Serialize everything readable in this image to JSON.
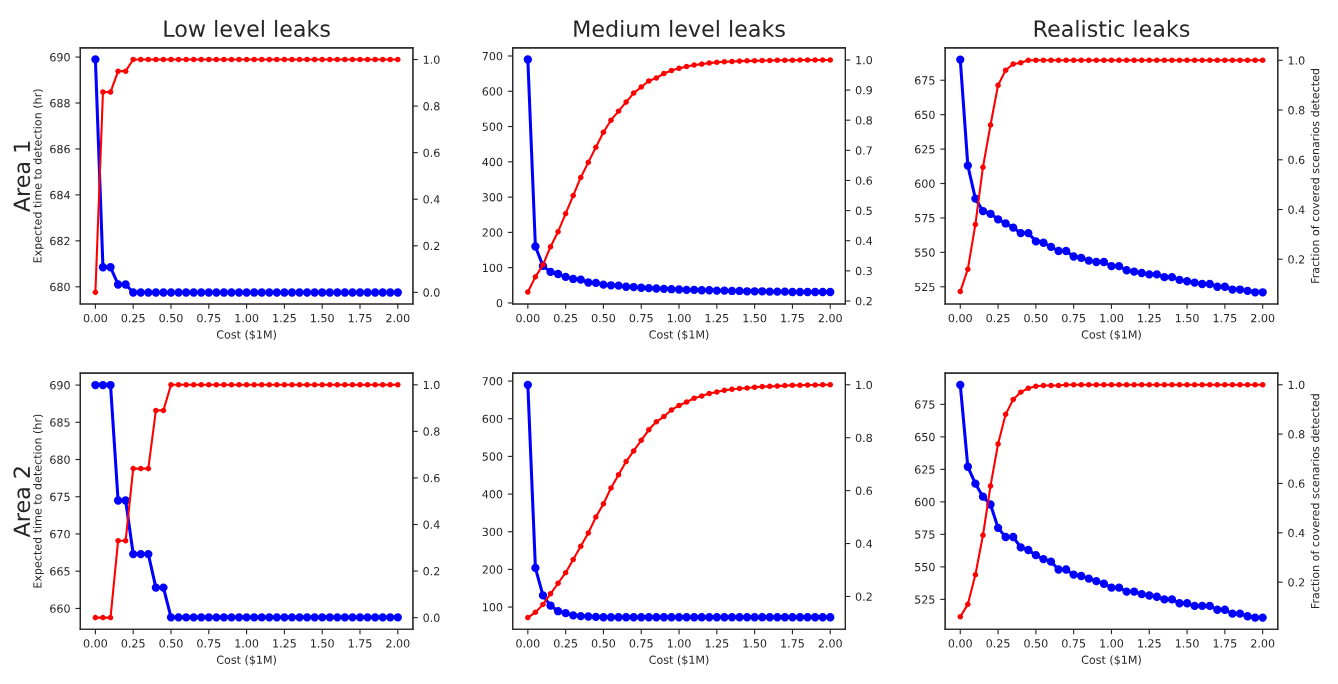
{
  "chart_data": [
    {
      "type": "line",
      "title": "Low level leaks",
      "xlabel": "Cost ($1M)",
      "ylabel": "Expected time to detection (hr)",
      "annotations": [
        "Area 1"
      ],
      "marker": "circle",
      "line_style": "solid",
      "grid": false,
      "legend": false,
      "x": [
        0,
        0.05,
        0.1,
        0.15,
        0.2,
        0.25,
        0.3,
        0.35,
        0.4,
        0.45,
        0.5,
        0.55,
        0.6,
        0.65,
        0.7,
        0.75,
        0.8,
        0.85,
        0.9,
        0.95,
        1.0,
        1.05,
        1.1,
        1.15,
        1.2,
        1.25,
        1.3,
        1.35,
        1.4,
        1.45,
        1.5,
        1.55,
        1.6,
        1.65,
        1.7,
        1.75,
        1.8,
        1.85,
        1.9,
        1.95,
        2.0
      ],
      "xlim": [
        -0.1,
        2.1
      ],
      "xticks": [
        {
          "value": 0,
          "label": "0.00"
        },
        {
          "value": 0.25,
          "label": "0.25"
        },
        {
          "value": 0.5,
          "label": "0.50"
        },
        {
          "value": 0.75,
          "label": "0.75"
        },
        {
          "value": 1,
          "label": "1.00"
        },
        {
          "value": 1.25,
          "label": "1.25"
        },
        {
          "value": 1.5,
          "label": "1.50"
        },
        {
          "value": 1.75,
          "label": "1.75"
        },
        {
          "value": 2,
          "label": "2.00"
        }
      ],
      "ylim": [
        679.25,
        690.4
      ],
      "yticks": [
        680,
        682,
        684,
        686,
        688,
        690
      ],
      "y2lim": [
        -0.05,
        1.05
      ],
      "y2ticks": [
        {
          "value": 0,
          "label": "0.0"
        },
        {
          "value": 0.2,
          "label": "0.2"
        },
        {
          "value": 0.4,
          "label": "0.4"
        },
        {
          "value": 0.6,
          "label": "0.6"
        },
        {
          "value": 0.8,
          "label": "0.8"
        },
        {
          "value": 1,
          "label": "1.0"
        }
      ],
      "series": [
        {
          "color": "#0000ff",
          "values": [
            689.9,
            680.85,
            680.85,
            680.1,
            680.1,
            679.75,
            679.75,
            679.75,
            679.75,
            679.75,
            679.75,
            679.75,
            679.75,
            679.75,
            679.75,
            679.75,
            679.75,
            679.75,
            679.75,
            679.75,
            679.75,
            679.75,
            679.75,
            679.75,
            679.75,
            679.75,
            679.75,
            679.75,
            679.75,
            679.75,
            679.75,
            679.75,
            679.75,
            679.75,
            679.75,
            679.75,
            679.75,
            679.75,
            679.75,
            679.75,
            679.75
          ]
        },
        {
          "color": "#ff0000",
          "axis": "y2",
          "values": [
            0,
            0.86,
            0.86,
            0.95,
            0.95,
            1,
            1,
            1,
            1,
            1,
            1,
            1,
            1,
            1,
            1,
            1,
            1,
            1,
            1,
            1,
            1,
            1,
            1,
            1,
            1,
            1,
            1,
            1,
            1,
            1,
            1,
            1,
            1,
            1,
            1,
            1,
            1,
            1,
            1,
            1,
            1
          ]
        }
      ]
    },
    {
      "type": "line",
      "title": "Medium level leaks",
      "xlabel": "Cost ($1M)",
      "marker": "circle",
      "line_style": "solid",
      "grid": false,
      "legend": false,
      "x": [
        0,
        0.05,
        0.1,
        0.15,
        0.2,
        0.25,
        0.3,
        0.35,
        0.4,
        0.45,
        0.5,
        0.55,
        0.6,
        0.65,
        0.7,
        0.75,
        0.8,
        0.85,
        0.9,
        0.95,
        1.0,
        1.05,
        1.1,
        1.15,
        1.2,
        1.25,
        1.3,
        1.35,
        1.4,
        1.45,
        1.5,
        1.55,
        1.6,
        1.65,
        1.7,
        1.75,
        1.8,
        1.85,
        1.9,
        1.95,
        2.0
      ],
      "xlim": [
        -0.1,
        2.1
      ],
      "xticks": [
        {
          "value": 0,
          "label": "0.00"
        },
        {
          "value": 0.25,
          "label": "0.25"
        },
        {
          "value": 0.5,
          "label": "0.50"
        },
        {
          "value": 0.75,
          "label": "0.75"
        },
        {
          "value": 1,
          "label": "1.00"
        },
        {
          "value": 1.25,
          "label": "1.25"
        },
        {
          "value": 1.5,
          "label": "1.50"
        },
        {
          "value": 1.75,
          "label": "1.75"
        },
        {
          "value": 2,
          "label": "2.00"
        }
      ],
      "ylim": [
        -3,
        723
      ],
      "yticks": [
        0,
        100,
        200,
        300,
        400,
        500,
        600,
        700
      ],
      "y2lim": [
        0.19,
        1.04
      ],
      "y2ticks": [
        {
          "value": 0.2,
          "label": "0.2"
        },
        {
          "value": 0.3,
          "label": "0.3"
        },
        {
          "value": 0.4,
          "label": "0.4"
        },
        {
          "value": 0.5,
          "label": "0.5"
        },
        {
          "value": 0.6,
          "label": "0.6"
        },
        {
          "value": 0.7,
          "label": "0.7"
        },
        {
          "value": 0.8,
          "label": "0.8"
        },
        {
          "value": 0.9,
          "label": "0.9"
        },
        {
          "value": 1,
          "label": "1.0"
        }
      ],
      "series": [
        {
          "color": "#0000ff",
          "values": [
            690,
            160,
            105,
            88,
            82,
            74,
            68,
            66,
            58,
            57,
            52,
            50,
            49,
            46,
            45,
            43,
            42,
            41,
            40,
            39,
            38,
            37,
            37,
            36,
            36,
            35,
            35,
            34,
            34,
            33,
            33,
            33,
            32,
            32,
            32,
            31,
            31,
            31,
            31,
            31,
            31
          ]
        },
        {
          "color": "#ff0000",
          "axis": "y2",
          "values": [
            0.23,
            0.28,
            0.32,
            0.38,
            0.43,
            0.49,
            0.55,
            0.61,
            0.66,
            0.71,
            0.76,
            0.8,
            0.83,
            0.86,
            0.89,
            0.91,
            0.93,
            0.94,
            0.955,
            0.965,
            0.972,
            0.978,
            0.983,
            0.986,
            0.99,
            0.992,
            0.994,
            0.995,
            0.996,
            0.997,
            0.997,
            0.998,
            0.998,
            0.999,
            0.999,
            0.999,
            1.0,
            1.0,
            1.0,
            1.0,
            1.0
          ]
        }
      ]
    },
    {
      "type": "line",
      "title": "Realistic leaks",
      "xlabel": "Cost ($1M)",
      "y2label": "Fraction of covered scenarios detected",
      "marker": "circle",
      "line_style": "solid",
      "grid": false,
      "legend": false,
      "x": [
        0,
        0.05,
        0.1,
        0.15,
        0.2,
        0.25,
        0.3,
        0.35,
        0.4,
        0.45,
        0.5,
        0.55,
        0.6,
        0.65,
        0.7,
        0.75,
        0.8,
        0.85,
        0.9,
        0.95,
        1.0,
        1.05,
        1.1,
        1.15,
        1.2,
        1.25,
        1.3,
        1.35,
        1.4,
        1.45,
        1.5,
        1.55,
        1.6,
        1.65,
        1.7,
        1.75,
        1.8,
        1.85,
        1.9,
        1.95,
        2.0
      ],
      "xlim": [
        -0.1,
        2.1
      ],
      "xticks": [
        {
          "value": 0,
          "label": "0.00"
        },
        {
          "value": 0.25,
          "label": "0.25"
        },
        {
          "value": 0.5,
          "label": "0.50"
        },
        {
          "value": 0.75,
          "label": "0.75"
        },
        {
          "value": 1,
          "label": "1.00"
        },
        {
          "value": 1.25,
          "label": "1.25"
        },
        {
          "value": 1.5,
          "label": "1.50"
        },
        {
          "value": 1.75,
          "label": "1.75"
        },
        {
          "value": 2,
          "label": "2.00"
        }
      ],
      "ylim": [
        512.5,
        698.5
      ],
      "yticks": [
        525,
        550,
        575,
        600,
        625,
        650,
        675
      ],
      "y2lim": [
        0.02,
        1.05
      ],
      "y2ticks": [
        {
          "value": 0.2,
          "label": "0.2"
        },
        {
          "value": 0.4,
          "label": "0.4"
        },
        {
          "value": 0.6,
          "label": "0.6"
        },
        {
          "value": 0.8,
          "label": "0.8"
        },
        {
          "value": 1,
          "label": "1.0"
        }
      ],
      "series": [
        {
          "color": "#0000ff",
          "values": [
            690,
            613,
            589,
            580,
            578,
            574,
            571,
            568,
            564,
            564,
            558,
            557,
            554,
            551,
            551,
            547,
            546,
            544,
            543,
            543,
            540,
            540,
            537,
            536,
            535,
            534,
            534,
            532,
            532,
            530,
            529,
            528,
            527,
            527,
            525,
            525,
            523,
            523,
            522,
            521,
            521
          ]
        },
        {
          "color": "#ff0000",
          "axis": "y2",
          "values": [
            0.07,
            0.16,
            0.34,
            0.57,
            0.74,
            0.9,
            0.96,
            0.985,
            0.99,
            1,
            1,
            1,
            1,
            1,
            1,
            1,
            1,
            1,
            1,
            1,
            1,
            1,
            1,
            1,
            1,
            1,
            1,
            1,
            1,
            1,
            1,
            1,
            1,
            1,
            1,
            1,
            1,
            1,
            1,
            1,
            1
          ]
        }
      ]
    },
    {
      "type": "line",
      "xlabel": "Cost ($1M)",
      "ylabel": "Expected time to detection (hr)",
      "annotations": [
        "Area 2"
      ],
      "marker": "circle",
      "line_style": "solid",
      "grid": false,
      "legend": false,
      "x": [
        0,
        0.05,
        0.1,
        0.15,
        0.2,
        0.25,
        0.3,
        0.35,
        0.4,
        0.45,
        0.5,
        0.55,
        0.6,
        0.65,
        0.7,
        0.75,
        0.8,
        0.85,
        0.9,
        0.95,
        1.0,
        1.05,
        1.1,
        1.15,
        1.2,
        1.25,
        1.3,
        1.35,
        1.4,
        1.45,
        1.5,
        1.55,
        1.6,
        1.65,
        1.7,
        1.75,
        1.8,
        1.85,
        1.9,
        1.95,
        2.0
      ],
      "xlim": [
        -0.1,
        2.1
      ],
      "xticks": [
        {
          "value": 0,
          "label": "0.00"
        },
        {
          "value": 0.25,
          "label": "0.25"
        },
        {
          "value": 0.5,
          "label": "0.50"
        },
        {
          "value": 0.75,
          "label": "0.75"
        },
        {
          "value": 1,
          "label": "1.00"
        },
        {
          "value": 1.25,
          "label": "1.25"
        },
        {
          "value": 1.5,
          "label": "1.50"
        },
        {
          "value": 1.75,
          "label": "1.75"
        },
        {
          "value": 2,
          "label": "2.00"
        }
      ],
      "ylim": [
        657.2,
        691.6
      ],
      "yticks": [
        660,
        665,
        670,
        675,
        680,
        685,
        690
      ],
      "y2lim": [
        -0.05,
        1.05
      ],
      "y2ticks": [
        {
          "value": 0,
          "label": "0.0"
        },
        {
          "value": 0.2,
          "label": "0.2"
        },
        {
          "value": 0.4,
          "label": "0.4"
        },
        {
          "value": 0.6,
          "label": "0.6"
        },
        {
          "value": 0.8,
          "label": "0.8"
        },
        {
          "value": 1,
          "label": "1.0"
        }
      ],
      "series": [
        {
          "color": "#0000ff",
          "values": [
            690,
            690,
            690,
            674.5,
            674.5,
            667.3,
            667.3,
            667.3,
            662.8,
            662.8,
            658.8,
            658.8,
            658.8,
            658.8,
            658.8,
            658.8,
            658.8,
            658.8,
            658.8,
            658.8,
            658.8,
            658.8,
            658.8,
            658.8,
            658.8,
            658.8,
            658.8,
            658.8,
            658.8,
            658.8,
            658.8,
            658.8,
            658.8,
            658.8,
            658.8,
            658.8,
            658.8,
            658.8,
            658.8,
            658.8,
            658.8
          ]
        },
        {
          "color": "#ff0000",
          "axis": "y2",
          "values": [
            0,
            0,
            0,
            0.33,
            0.33,
            0.64,
            0.64,
            0.64,
            0.89,
            0.89,
            1,
            1,
            1,
            1,
            1,
            1,
            1,
            1,
            1,
            1,
            1,
            1,
            1,
            1,
            1,
            1,
            1,
            1,
            1,
            1,
            1,
            1,
            1,
            1,
            1,
            1,
            1,
            1,
            1,
            1,
            1
          ]
        }
      ]
    },
    {
      "type": "line",
      "xlabel": "Cost ($1M)",
      "marker": "circle",
      "line_style": "solid",
      "grid": false,
      "legend": false,
      "x": [
        0,
        0.05,
        0.1,
        0.15,
        0.2,
        0.25,
        0.3,
        0.35,
        0.4,
        0.45,
        0.5,
        0.55,
        0.6,
        0.65,
        0.7,
        0.75,
        0.8,
        0.85,
        0.9,
        0.95,
        1.0,
        1.05,
        1.1,
        1.15,
        1.2,
        1.25,
        1.3,
        1.35,
        1.4,
        1.45,
        1.5,
        1.55,
        1.6,
        1.65,
        1.7,
        1.75,
        1.8,
        1.85,
        1.9,
        1.95,
        2.0
      ],
      "xlim": [
        -0.1,
        2.1
      ],
      "xticks": [
        {
          "value": 0,
          "label": "0.00"
        },
        {
          "value": 0.25,
          "label": "0.25"
        },
        {
          "value": 0.5,
          "label": "0.50"
        },
        {
          "value": 0.75,
          "label": "0.75"
        },
        {
          "value": 1,
          "label": "1.00"
        },
        {
          "value": 1.25,
          "label": "1.25"
        },
        {
          "value": 1.5,
          "label": "1.50"
        },
        {
          "value": 1.75,
          "label": "1.75"
        },
        {
          "value": 2,
          "label": "2.00"
        }
      ],
      "ylim": [
        41,
        721
      ],
      "yticks": [
        100,
        200,
        300,
        400,
        500,
        600,
        700
      ],
      "y2lim": [
        0.076,
        1.044
      ],
      "y2ticks": [
        {
          "value": 0.2,
          "label": "0.2"
        },
        {
          "value": 0.4,
          "label": "0.4"
        },
        {
          "value": 0.6,
          "label": "0.6"
        },
        {
          "value": 0.8,
          "label": "0.8"
        },
        {
          "value": 1,
          "label": "1.0"
        }
      ],
      "series": [
        {
          "color": "#0000ff",
          "values": [
            690,
            204,
            131,
            104,
            89,
            84,
            78,
            76,
            75,
            74,
            73,
            73,
            73,
            73,
            73,
            73,
            73,
            73,
            73,
            73,
            73,
            73,
            73,
            73,
            73,
            73,
            73,
            73,
            73,
            73,
            73,
            73,
            73,
            73,
            73,
            73,
            73,
            73,
            73,
            73,
            73
          ]
        },
        {
          "color": "#ff0000",
          "axis": "y2",
          "values": [
            0.12,
            0.14,
            0.17,
            0.21,
            0.25,
            0.29,
            0.34,
            0.39,
            0.44,
            0.5,
            0.55,
            0.61,
            0.66,
            0.71,
            0.75,
            0.79,
            0.83,
            0.86,
            0.88,
            0.905,
            0.922,
            0.935,
            0.949,
            0.958,
            0.967,
            0.973,
            0.979,
            0.983,
            0.986,
            0.988,
            0.991,
            0.993,
            0.994,
            0.995,
            0.997,
            0.998,
            0.998,
            0.999,
            0.999,
            1.0,
            1.0
          ]
        }
      ]
    },
    {
      "type": "line",
      "xlabel": "Cost ($1M)",
      "y2label": "Fraction of covered scenarios detected",
      "marker": "circle",
      "line_style": "solid",
      "grid": false,
      "legend": false,
      "x": [
        0,
        0.05,
        0.1,
        0.15,
        0.2,
        0.25,
        0.3,
        0.35,
        0.4,
        0.45,
        0.5,
        0.55,
        0.6,
        0.65,
        0.7,
        0.75,
        0.8,
        0.85,
        0.9,
        0.95,
        1.0,
        1.05,
        1.1,
        1.15,
        1.2,
        1.25,
        1.3,
        1.35,
        1.4,
        1.45,
        1.5,
        1.55,
        1.6,
        1.65,
        1.7,
        1.75,
        1.8,
        1.85,
        1.9,
        1.95,
        2.0
      ],
      "xlim": [
        -0.1,
        2.1
      ],
      "xticks": [
        {
          "value": 0,
          "label": "0.00"
        },
        {
          "value": 0.25,
          "label": "0.25"
        },
        {
          "value": 0.5,
          "label": "0.50"
        },
        {
          "value": 0.75,
          "label": "0.75"
        },
        {
          "value": 1,
          "label": "1.00"
        },
        {
          "value": 1.25,
          "label": "1.25"
        },
        {
          "value": 1.5,
          "label": "1.50"
        },
        {
          "value": 1.75,
          "label": "1.75"
        },
        {
          "value": 2,
          "label": "2.00"
        }
      ],
      "ylim": [
        502,
        699
      ],
      "yticks": [
        525,
        550,
        575,
        600,
        625,
        650,
        675
      ],
      "y2lim": [
        0.009,
        1.047
      ],
      "y2ticks": [
        {
          "value": 0.2,
          "label": "0.2"
        },
        {
          "value": 0.4,
          "label": "0.4"
        },
        {
          "value": 0.6,
          "label": "0.6"
        },
        {
          "value": 0.8,
          "label": "0.8"
        },
        {
          "value": 1,
          "label": "1.0"
        }
      ],
      "series": [
        {
          "color": "#0000ff",
          "values": [
            690,
            627,
            614,
            604,
            598,
            580,
            573,
            573,
            565,
            563,
            559,
            556,
            554,
            548,
            548,
            544,
            543,
            541,
            539,
            537,
            534,
            534,
            531,
            531,
            529,
            528,
            527,
            525,
            525,
            522,
            522,
            520,
            520,
            520,
            517,
            517,
            514,
            514,
            512,
            511,
            511
          ]
        },
        {
          "color": "#ff0000",
          "axis": "y2",
          "values": [
            0.06,
            0.11,
            0.23,
            0.39,
            0.59,
            0.76,
            0.88,
            0.94,
            0.97,
            0.986,
            0.994,
            0.997,
            0.997,
            0.997,
            1,
            1,
            1,
            1,
            1,
            1,
            1,
            1,
            1,
            1,
            1,
            1,
            1,
            1,
            1,
            1,
            1,
            1,
            1,
            1,
            1,
            1,
            1,
            1,
            1,
            1,
            1
          ]
        }
      ]
    }
  ]
}
